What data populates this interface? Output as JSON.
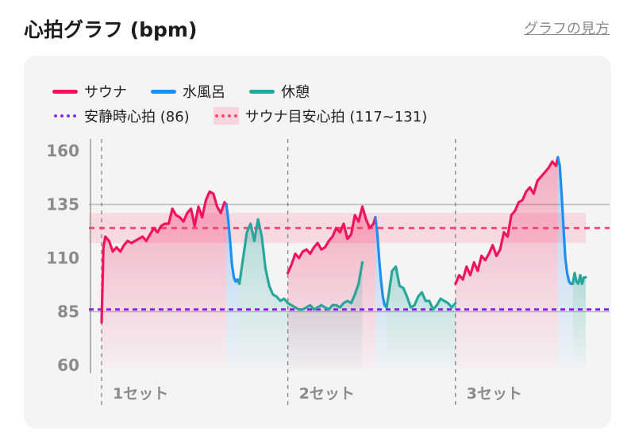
{
  "header": {
    "title": "心拍グラフ (bpm)",
    "help_link": "グラフの見方"
  },
  "legend": {
    "sauna": "サウナ",
    "water_bath": "水風呂",
    "rest": "休憩",
    "resting_hr": "安静時心拍 (86)",
    "target_hr": "サウナ目安心拍 (117~131)"
  },
  "colors": {
    "sauna": "#f0155a",
    "water_bath": "#1f8ef1",
    "rest": "#27a79c",
    "resting_hr": "#8b22ee",
    "target_hr": "#f0436a",
    "target_band": "#f7d3dd"
  },
  "chart_data": {
    "type": "line",
    "ylim": [
      60,
      160
    ],
    "yticks": [
      60,
      85,
      110,
      135,
      160
    ],
    "reference_lines": {
      "resting_hr": 86,
      "target_low": 117,
      "target_high": 131,
      "target_mid": 124
    },
    "sets": [
      {
        "label": "1セット",
        "start": 0,
        "end": 100
      },
      {
        "label": "2セット",
        "start": 100,
        "end": 190
      },
      {
        "label": "3セット",
        "start": 190,
        "end": 260
      }
    ],
    "series": [
      {
        "name": "サウナ",
        "key": "sauna",
        "segments": [
          {
            "x": [
              0,
              1,
              2,
              4,
              6,
              8,
              10,
              12,
              14,
              16,
              18,
              20,
              22,
              24,
              26,
              28,
              30,
              32,
              34,
              36,
              38,
              40,
              42,
              44,
              46,
              48,
              50,
              52,
              54,
              56,
              58,
              60,
              62,
              64,
              66,
              67
            ],
            "y": [
              80,
              115,
              120,
              118,
              113,
              115,
              113,
              116,
              118,
              117,
              118,
              119,
              120,
              118,
              121,
              124,
              122,
              125,
              126,
              126,
              133,
              130,
              129,
              127,
              131,
              133,
              125,
              134,
              129,
              137,
              141,
              140,
              134,
              131,
              136,
              135
            ]
          },
          {
            "x": [
              100,
              102,
              104,
              106,
              108,
              110,
              112,
              114,
              116,
              118,
              120,
              122,
              124,
              126,
              128,
              130,
              132,
              134,
              136,
              138,
              140,
              142,
              144,
              146,
              147
            ],
            "y": [
              103,
              107,
              112,
              110,
              113,
              114,
              112,
              115,
              117,
              114,
              115,
              118,
              120,
              124,
              122,
              126,
              119,
              121,
              130,
              127,
              134,
              128,
              124,
              126,
              129
            ]
          },
          {
            "x": [
              190,
              192,
              194,
              196,
              198,
              200,
              202,
              204,
              206,
              208,
              210,
              212,
              214,
              216,
              218,
              220,
              222,
              224,
              226,
              228,
              230,
              232,
              234,
              236,
              238,
              240,
              242,
              244,
              245
            ],
            "y": [
              98,
              102,
              100,
              106,
              102,
              108,
              104,
              111,
              109,
              112,
              116,
              111,
              114,
              122,
              120,
              130,
              132,
              136,
              137,
              141,
              143,
              140,
              146,
              148,
              150,
              152,
              155,
              153,
              157
            ]
          }
        ]
      },
      {
        "name": "水風呂",
        "key": "water_bath",
        "segments": [
          {
            "x": [
              67,
              68,
              69,
              70,
              71,
              72,
              73,
              74
            ],
            "y": [
              135,
              128,
              118,
              107,
              101,
              99,
              100,
              98
            ]
          },
          {
            "x": [
              147,
              148,
              149,
              150,
              151,
              152,
              153
            ],
            "y": [
              129,
              122,
              110,
              100,
              92,
              88,
              87
            ]
          },
          {
            "x": [
              245,
              246,
              247,
              248,
              249,
              250,
              251,
              252,
              253
            ],
            "y": [
              157,
              153,
              140,
              125,
              110,
              103,
              99,
              98,
              98
            ]
          }
        ]
      },
      {
        "name": "休憩",
        "key": "rest",
        "segments": [
          {
            "x": [
              74,
              76,
              78,
              80,
              82,
              84,
              86,
              88,
              90,
              92,
              94,
              96,
              98,
              100,
              102,
              104,
              106,
              108,
              110,
              112,
              114,
              116,
              118,
              120,
              122,
              124,
              126,
              128,
              130,
              132,
              134,
              136,
              138,
              140
            ],
            "y": [
              98,
              110,
              122,
              126,
              118,
              128,
              120,
              105,
              97,
              93,
              92,
              90,
              91,
              89,
              88,
              87,
              86,
              86,
              87,
              88,
              86,
              87,
              88,
              87,
              86,
              88,
              88,
              87,
              89,
              90,
              89,
              93,
              98,
              108
            ]
          },
          {
            "x": [
              153,
              154,
              156,
              158,
              160,
              162,
              164,
              166,
              168,
              170,
              172,
              174,
              176,
              178,
              180,
              182,
              184,
              186,
              188,
              190
            ],
            "y": [
              87,
              92,
              104,
              106,
              97,
              96,
              92,
              87,
              88,
              92,
              94,
              90,
              90,
              86,
              88,
              91,
              90,
              89,
              87,
              89
            ]
          },
          {
            "x": [
              253,
              254,
              255,
              256,
              257,
              258,
              259,
              260
            ],
            "y": [
              98,
              103,
              99,
              98,
              102,
              98,
              101,
              101
            ]
          }
        ]
      }
    ]
  },
  "set_labels": [
    "1セット",
    "2セット",
    "3セット"
  ],
  "y_tick_labels": [
    "160",
    "135",
    "110",
    "85",
    "60"
  ]
}
